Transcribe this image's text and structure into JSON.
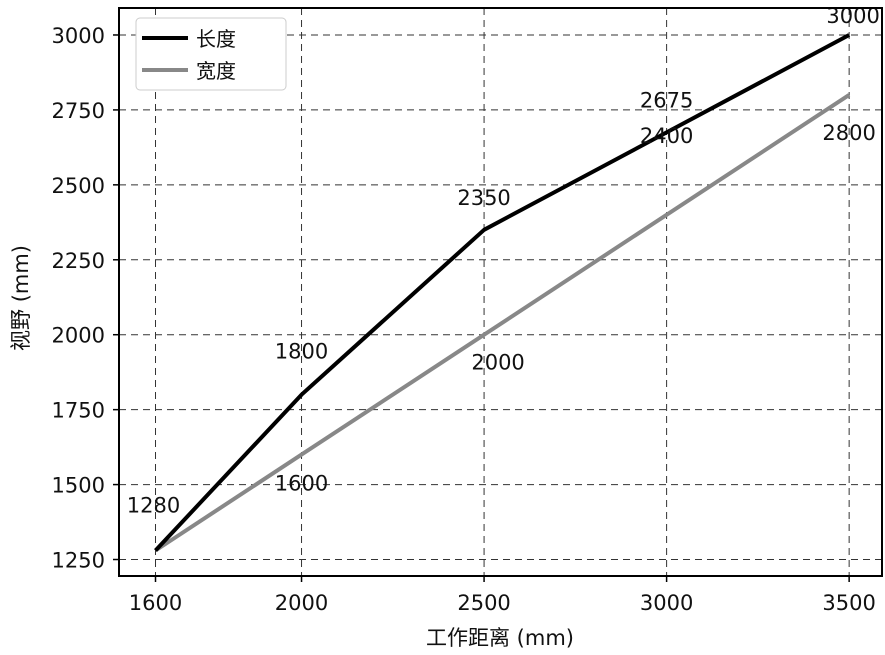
{
  "chart_data": {
    "type": "line",
    "xlabel": "工作距离 (mm)",
    "ylabel": "视野 (mm)",
    "xlim": [
      1500,
      3590
    ],
    "ylim": [
      1195,
      3090
    ],
    "xticks": [
      1600,
      2000,
      2500,
      3000,
      3500
    ],
    "yticks": [
      1250,
      1500,
      1750,
      2000,
      2250,
      2500,
      2750,
      3000
    ],
    "grid": true,
    "legend_position": "top-left",
    "series": [
      {
        "name": "长度",
        "color": "#000000",
        "x": [
          1600,
          2000,
          2500,
          3000,
          3500
        ],
        "y": [
          1280,
          1800,
          2350,
          2675,
          3000
        ],
        "labels": [
          "1280",
          "1800",
          "2350",
          "2675",
          "3000"
        ]
      },
      {
        "name": "宽度",
        "color": "#888888",
        "x": [
          1600,
          2000,
          2500,
          3000,
          3500
        ],
        "y": [
          1280,
          1600,
          2000,
          2400,
          2800
        ],
        "labels": [
          "",
          "1600",
          "2000",
          "2400",
          "2800"
        ]
      }
    ]
  }
}
